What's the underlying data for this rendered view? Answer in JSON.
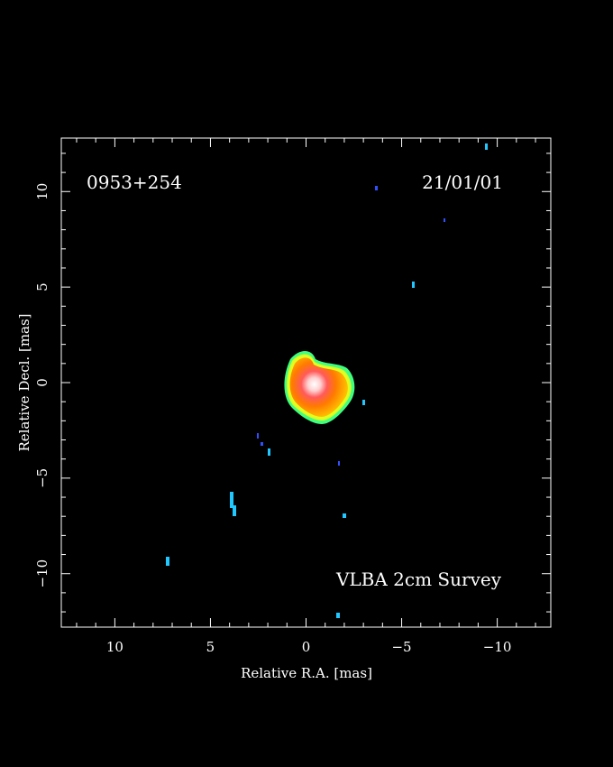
{
  "source_name": "0953+254",
  "observation_date": "21/01/01",
  "survey_label": "VLBA 2cm Survey",
  "x_axis": {
    "label": "Relative R.A. [mas]",
    "range": [
      12.8,
      -12.8
    ],
    "ticks": [
      {
        "value": 10,
        "label": "10"
      },
      {
        "value": 5,
        "label": "5"
      },
      {
        "value": 0,
        "label": "0"
      },
      {
        "value": -5,
        "label": "−5"
      },
      {
        "value": -10,
        "label": "−10"
      }
    ]
  },
  "y_axis": {
    "label": "Relative Decl. [mas]",
    "range": [
      -12.8,
      12.8
    ],
    "ticks": [
      {
        "value": 10,
        "label": "10"
      },
      {
        "value": 5,
        "label": "5"
      },
      {
        "value": 0,
        "label": "0"
      },
      {
        "value": -5,
        "label": "−5"
      },
      {
        "value": -10,
        "label": "−10"
      }
    ]
  },
  "colors": {
    "frame": "#ffffff",
    "background": "#000000",
    "core_peak": "#ffffff",
    "core_high": "#ff5a5a",
    "core_mid": "#ff8c00",
    "core_low": "#ffcc00",
    "edge_yellow": "#e0ff20",
    "edge_green": "#40ff80",
    "noise_cyan": "#20c8ff",
    "noise_blue": "#3050ff"
  }
}
